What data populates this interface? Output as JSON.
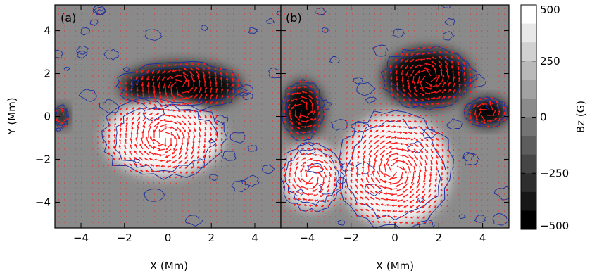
{
  "chart_data": [
    {
      "type": "heatmap",
      "panel_label": "(a)",
      "xlabel": "X (Mm)",
      "ylabel": "Y (Mm)",
      "xlim": [
        -5.2,
        5.2
      ],
      "ylim": [
        -5.2,
        5.2
      ],
      "xticks": [
        -4,
        -2,
        0,
        2,
        4
      ],
      "yticks": [
        -4,
        -2,
        0,
        2,
        4
      ],
      "background_field": "Bz",
      "overlays": [
        "horizontal-field vectors (red arrows)",
        "contours (blue lines)"
      ],
      "features": [
        {
          "polarity": "negative",
          "center": [
            0.6,
            1.4
          ],
          "extent_x": [
            -2.3,
            3.2
          ],
          "extent_y": [
            0.4,
            2.5
          ]
        },
        {
          "polarity": "positive",
          "center": [
            -0.2,
            -1.0
          ],
          "extent_x": [
            -2.4,
            3.0
          ],
          "extent_y": [
            -3.3,
            0.2
          ]
        },
        {
          "polarity": "negative",
          "center": [
            -4.9,
            0.0
          ],
          "extent_x": [
            -5.2,
            -4.6
          ],
          "extent_y": [
            -0.6,
            0.4
          ]
        }
      ]
    },
    {
      "type": "heatmap",
      "panel_label": "(b)",
      "xlabel": "X (Mm)",
      "ylabel": "",
      "xlim": [
        -5.2,
        5.2
      ],
      "ylim": [
        -5.2,
        5.2
      ],
      "xticks": [
        -4,
        -2,
        0,
        2,
        4
      ],
      "yticks": [
        -4,
        -2,
        0,
        2,
        4
      ],
      "background_field": "Bz",
      "overlays": [
        "horizontal-field vectors (red arrows)",
        "contours (blue lines)"
      ],
      "features": [
        {
          "polarity": "negative",
          "center": [
            1.5,
            1.8
          ],
          "extent_x": [
            -0.5,
            3.5
          ],
          "extent_y": [
            0.8,
            3.5
          ]
        },
        {
          "polarity": "negative",
          "center": [
            -4.2,
            0.3
          ],
          "extent_x": [
            -5.2,
            -3.4
          ],
          "extent_y": [
            -1.0,
            1.6
          ]
        },
        {
          "polarity": "negative",
          "center": [
            4.2,
            0.2
          ],
          "extent_x": [
            3.3,
            5.2
          ],
          "extent_y": [
            -0.5,
            0.8
          ]
        },
        {
          "polarity": "positive",
          "center": [
            0.0,
            -2.5
          ],
          "extent_x": [
            -2.5,
            2.5
          ],
          "extent_y": [
            -5.2,
            0.0
          ]
        },
        {
          "polarity": "positive",
          "center": [
            -3.8,
            -2.8
          ],
          "extent_x": [
            -5.2,
            -2.5
          ],
          "extent_y": [
            -4.5,
            -1.5
          ]
        }
      ]
    }
  ],
  "colorbar": {
    "label": "Bz (G)",
    "range": [
      -500,
      500
    ],
    "ticks": [
      500,
      250,
      0,
      -250,
      -500
    ],
    "tick_labels": [
      "500",
      "250",
      "0",
      "−250",
      "−500"
    ],
    "levels": 12,
    "colormap": "gray"
  },
  "colors": {
    "vector": "#ff1a1a",
    "contour": "#1e2ea0",
    "quiet_sun": "#8a8a8a"
  }
}
